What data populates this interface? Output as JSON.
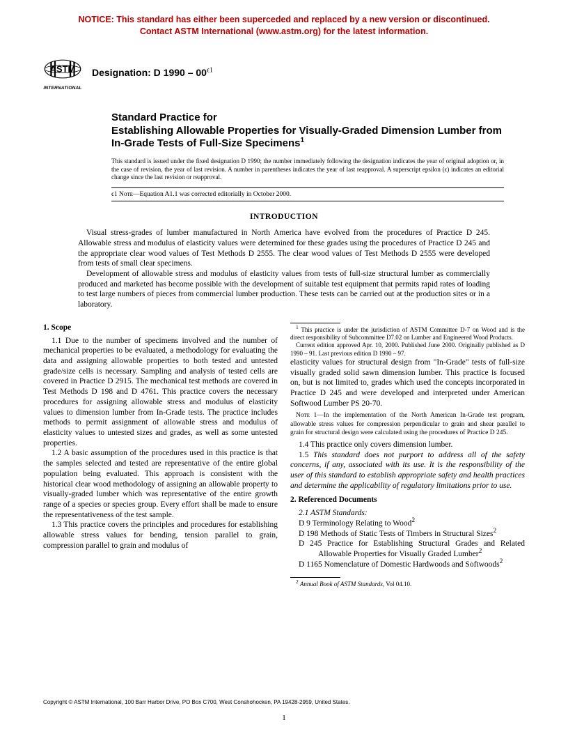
{
  "notice": {
    "color": "#b80000",
    "line1": "NOTICE: This standard has either been superceded and replaced by a new version or discontinued.",
    "line2": "Contact ASTM International (www.astm.org) for the latest information."
  },
  "logo": {
    "label": "INTERNATIONAL"
  },
  "designation": {
    "prefix": "Designation: ",
    "code": "D 1990 – 00",
    "superscript": "ϵ1"
  },
  "title": {
    "pre": "Standard Practice for",
    "main": "Establishing Allowable Properties for Visually-Graded Dimension Lumber from In-Grade Tests of Full-Size Specimens",
    "superscript": "1"
  },
  "issuance": "This standard is issued under the fixed designation D 1990; the number immediately following the designation indicates the year of original adoption or, in the case of revision, the year of last revision. A number in parentheses indicates the year of last reapproval. A superscript epsilon (ϵ) indicates an editorial change since the last revision or reapproval.",
  "epsilon_note": {
    "marker": "ϵ1",
    "label": " Nᴏᴛᴇ—",
    "text": "Equation A1.1 was corrected editorially in October 2000."
  },
  "introduction": {
    "heading": "INTRODUCTION",
    "para1": "Visual stress-grades of lumber manufactured in North America have evolved from the procedures of Practice D 245. Allowable stress and modulus of elasticity values were determined for these grades using the procedures of Practice D 245 and the appropriate clear wood values of Test Methods D 2555. The clear wood values of Test Methods D 2555 were developed from tests of small clear specimens.",
    "para2": "Development of allowable stress and modulus of elasticity values from tests of full-size structural lumber as commercially produced and marketed has become possible with the development of suitable test equipment that permits rapid rates of loading to test large numbers of pieces from commercial lumber production. These tests can be carried out at the production sites or in a laboratory."
  },
  "scope": {
    "heading": "1. Scope",
    "p11": "1.1 Due to the number of specimens involved and the number of mechanical properties to be evaluated, a methodology for evaluating the data and assigning allowable properties to both tested and untested grade/size cells is necessary. Sampling and analysis of tested cells are covered in Practice D 2915. The mechanical test methods are covered in Test Methods D 198 and D 4761. This practice covers the necessary procedures for assigning allowable stress and modulus of elasticity values to dimension lumber from In-Grade tests. The practice includes methods to permit assignment of allowable stress and modulus of elasticity values to untested sizes and grades, as well as some untested properties.",
    "p12": "1.2 A basic assumption of the procedures used in this practice is that the samples selected and tested are representative of the entire global population being evaluated. This approach is consistent with the historical clear wood methodology of assigning an allowable property to visually-graded lumber which was representative of the entire growth range of a species or species group. Every effort shall be made to ensure the representativeness of the test sample.",
    "p13a": "1.3 This practice covers the principles and procedures for establishing allowable stress values for bending, tension parallel to grain, compression parallel to grain and modulus of ",
    "p13b": "elasticity values for structural design from \"In-Grade\" tests of full-size visually graded solid sawn dimension lumber. This practice is focused on, but is not limited to, grades which used the concepts incorporated in Practice D 245 and were developed and interpreted under American Softwood Lumber PS 20-70.",
    "note1_label": "Nᴏᴛᴇ 1—",
    "note1": "In the implementation of the North American In-Grade test program, allowable stress values for compression perpendicular to grain and shear parallel to grain for structural design were calculated using the procedures of Practice D 245.",
    "p14": "1.4 This practice only covers dimension lumber.",
    "p15": "1.5 This standard does not purport to address all of the safety concerns, if any, associated with its use. It is the responsibility of the user of this standard to establish appropriate safety and health practices and determine the applicability of regulatory limitations prior to use."
  },
  "references": {
    "heading": "2. Referenced Documents",
    "sub": "2.1 ASTM Standards:",
    "items": [
      {
        "code": "D 9",
        "title": "Terminology Relating to Wood",
        "fn": "2"
      },
      {
        "code": "D 198",
        "title": "Methods of Static Tests of Timbers in Structural Sizes",
        "fn": "2"
      },
      {
        "code": "D 245",
        "title": "Practice for Establishing Structural Grades and Related Allowable Properties for Visually Graded Lumber",
        "fn": "2"
      },
      {
        "code": "D 1165",
        "title": "Nomenclature of Domestic Hardwoods and Softwoods",
        "fn": "2"
      }
    ]
  },
  "footnotes": {
    "fn1a": "This practice is under the jurisdiction of ASTM Committee D-7 on Wood and is the direct responsibility of Subcommittee D7.02 on Lumber and Engineered Wood Products.",
    "fn1b": "Current edition approved Apr. 10, 2000. Published June 2000. Originally published as D 1990 – 91. Last previous edition D 1990 – 97.",
    "fn2_label": "2",
    "fn2_text_pre": " Annual Book of ASTM Standards",
    "fn2_text_post": ", Vol 04.10."
  },
  "copyright": "Copyright © ASTM International, 100 Barr Harbor Drive, PO Box C700, West Conshohocken, PA 19428-2959, United States.",
  "page_number": "1"
}
